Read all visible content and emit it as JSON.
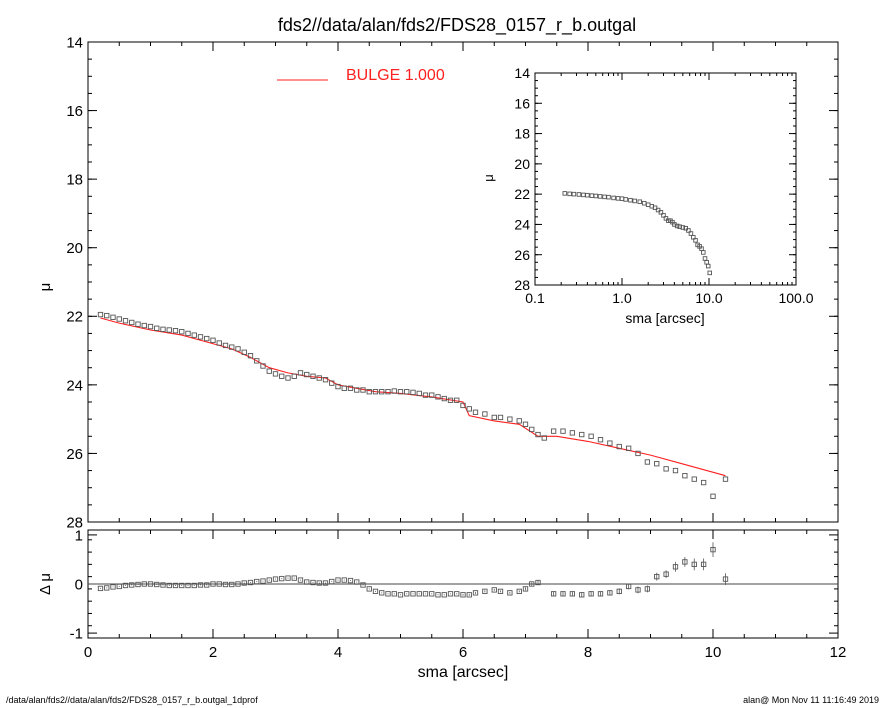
{
  "title": "fds2//data/alan/fds2/FDS28_0157_r_b.outgal",
  "footer": {
    "left": "/data/alan/fds2//data/alan/fds2/FDS28_0157_r_b.outgal_1dprof",
    "right": "alan@  Mon Nov 11 11:16:49 2019"
  },
  "colors": {
    "model": "#ff2020",
    "data": "#555555",
    "axes": "#000000",
    "zero_line": "#444444"
  },
  "chart_data": [
    {
      "id": "main",
      "type": "scatter",
      "xlabel": "",
      "ylabel": "μ",
      "xlim": [
        0,
        12
      ],
      "ylim": [
        28,
        14
      ],
      "x_ticks": [],
      "y_ticks": [
        "14",
        "16",
        "18",
        "20",
        "22",
        "24",
        "26",
        "28"
      ],
      "legend": {
        "label": "BULGE  1.000",
        "placement": "top-center"
      },
      "series": [
        {
          "name": "BULGE  1.000",
          "kind": "line",
          "x": [
            0.2,
            0.5,
            1.0,
            1.5,
            1.9,
            2.3,
            2.6,
            2.9,
            3.2,
            3.5,
            3.8,
            4.0,
            4.3,
            4.6,
            5.0,
            5.5,
            6.0,
            6.1,
            6.5,
            6.9,
            7.2,
            7.5,
            8.0,
            8.5,
            9.0,
            9.5,
            10.2
          ],
          "y": [
            22.05,
            22.2,
            22.4,
            22.55,
            22.75,
            22.95,
            23.2,
            23.5,
            23.65,
            23.75,
            23.8,
            24.0,
            24.1,
            24.2,
            24.25,
            24.35,
            24.5,
            24.9,
            25.05,
            25.15,
            25.5,
            25.5,
            25.65,
            25.85,
            26.05,
            26.3,
            26.65
          ]
        },
        {
          "name": "",
          "kind": "points",
          "x": [
            0.2,
            0.3,
            0.4,
            0.5,
            0.6,
            0.7,
            0.8,
            0.9,
            1.0,
            1.1,
            1.2,
            1.3,
            1.4,
            1.5,
            1.6,
            1.7,
            1.8,
            1.9,
            2.0,
            2.1,
            2.2,
            2.3,
            2.4,
            2.5,
            2.6,
            2.7,
            2.8,
            2.9,
            3.0,
            3.1,
            3.2,
            3.3,
            3.4,
            3.5,
            3.6,
            3.7,
            3.8,
            3.9,
            4.0,
            4.1,
            4.2,
            4.3,
            4.4,
            4.5,
            4.6,
            4.7,
            4.8,
            4.9,
            5.0,
            5.1,
            5.2,
            5.3,
            5.4,
            5.5,
            5.6,
            5.7,
            5.8,
            5.9,
            6.0,
            6.1,
            6.2,
            6.35,
            6.5,
            6.6,
            6.75,
            6.9,
            7.0,
            7.1,
            7.2,
            7.3,
            7.45,
            7.6,
            7.75,
            7.9,
            8.05,
            8.2,
            8.35,
            8.5,
            8.65,
            8.8,
            8.95,
            9.1,
            9.25,
            9.4,
            9.55,
            9.7,
            9.85,
            10.0,
            10.2
          ],
          "y": [
            21.95,
            21.98,
            22.03,
            22.08,
            22.13,
            22.18,
            22.23,
            22.27,
            22.3,
            22.35,
            22.38,
            22.4,
            22.42,
            22.45,
            22.5,
            22.55,
            22.6,
            22.65,
            22.7,
            22.78,
            22.85,
            22.9,
            22.95,
            23.05,
            23.15,
            23.3,
            23.45,
            23.6,
            23.68,
            23.75,
            23.8,
            23.75,
            23.65,
            23.7,
            23.75,
            23.8,
            23.85,
            23.95,
            24.05,
            24.1,
            24.1,
            24.15,
            24.15,
            24.2,
            24.2,
            24.2,
            24.2,
            24.18,
            24.2,
            24.2,
            24.22,
            24.25,
            24.3,
            24.3,
            24.35,
            24.4,
            24.45,
            24.45,
            24.6,
            24.7,
            24.8,
            24.85,
            24.95,
            24.95,
            25.0,
            25.05,
            25.15,
            25.3,
            25.45,
            25.55,
            25.35,
            25.35,
            25.4,
            25.45,
            25.5,
            25.6,
            25.7,
            25.8,
            25.85,
            26.0,
            26.25,
            26.3,
            26.45,
            26.5,
            26.65,
            26.75,
            26.85,
            27.25,
            26.75
          ]
        }
      ]
    },
    {
      "id": "residuals",
      "type": "scatter",
      "xlabel": "sma [arcsec]",
      "ylabel": "Δ μ",
      "xlim": [
        0,
        12
      ],
      "ylim": [
        -1.1,
        1.1
      ],
      "x_ticks": [
        "0",
        "2",
        "4",
        "6",
        "8",
        "10",
        "12"
      ],
      "y_ticks": [
        "1",
        "0",
        "-1"
      ],
      "series": [
        {
          "name": "",
          "kind": "points",
          "x": [
            0.2,
            0.3,
            0.4,
            0.5,
            0.6,
            0.7,
            0.8,
            0.9,
            1.0,
            1.1,
            1.2,
            1.3,
            1.4,
            1.5,
            1.6,
            1.7,
            1.8,
            1.9,
            2.0,
            2.1,
            2.2,
            2.3,
            2.4,
            2.5,
            2.6,
            2.7,
            2.8,
            2.9,
            3.0,
            3.1,
            3.2,
            3.3,
            3.4,
            3.5,
            3.6,
            3.7,
            3.8,
            3.9,
            4.0,
            4.1,
            4.2,
            4.3,
            4.4,
            4.5,
            4.6,
            4.7,
            4.8,
            4.9,
            5.0,
            5.1,
            5.2,
            5.3,
            5.4,
            5.5,
            5.6,
            5.7,
            5.8,
            5.9,
            6.0,
            6.1,
            6.2,
            6.35,
            6.5,
            6.6,
            6.75,
            6.9,
            7.0,
            7.1,
            7.2,
            7.45,
            7.6,
            7.75,
            7.9,
            8.05,
            8.2,
            8.35,
            8.5,
            8.65,
            8.8,
            8.95,
            9.1,
            9.25,
            9.4,
            9.55,
            9.7,
            9.85,
            10.0,
            10.2
          ],
          "y": [
            -0.09,
            -0.08,
            -0.06,
            -0.05,
            -0.03,
            -0.02,
            -0.01,
            0.0,
            0.0,
            -0.01,
            -0.02,
            -0.03,
            -0.03,
            -0.03,
            -0.03,
            -0.03,
            -0.02,
            -0.02,
            0.0,
            0.0,
            -0.01,
            -0.01,
            0.0,
            0.02,
            0.03,
            0.05,
            0.06,
            0.08,
            0.1,
            0.11,
            0.12,
            0.12,
            0.08,
            0.04,
            0.03,
            0.02,
            0.02,
            0.05,
            0.08,
            0.08,
            0.07,
            0.04,
            -0.02,
            -0.1,
            -0.15,
            -0.18,
            -0.2,
            -0.2,
            -0.22,
            -0.2,
            -0.2,
            -0.2,
            -0.2,
            -0.2,
            -0.22,
            -0.22,
            -0.2,
            -0.2,
            -0.22,
            -0.22,
            -0.18,
            -0.15,
            -0.12,
            -0.15,
            -0.18,
            -0.15,
            -0.1,
            0.0,
            0.03,
            -0.2,
            -0.2,
            -0.2,
            -0.22,
            -0.2,
            -0.2,
            -0.18,
            -0.15,
            -0.05,
            -0.12,
            -0.1,
            0.15,
            0.2,
            0.35,
            0.45,
            0.4,
            0.4,
            0.7,
            0.1
          ],
          "errors": [
            0.01,
            0.01,
            0.01,
            0.01,
            0.01,
            0.01,
            0.01,
            0.01,
            0.01,
            0.01,
            0.01,
            0.01,
            0.01,
            0.01,
            0.01,
            0.01,
            0.01,
            0.01,
            0.01,
            0.01,
            0.01,
            0.01,
            0.01,
            0.01,
            0.01,
            0.01,
            0.01,
            0.01,
            0.01,
            0.01,
            0.01,
            0.01,
            0.01,
            0.01,
            0.01,
            0.01,
            0.01,
            0.01,
            0.01,
            0.01,
            0.01,
            0.01,
            0.01,
            0.01,
            0.01,
            0.01,
            0.01,
            0.01,
            0.01,
            0.01,
            0.01,
            0.01,
            0.01,
            0.01,
            0.01,
            0.01,
            0.01,
            0.01,
            0.02,
            0.02,
            0.02,
            0.02,
            0.02,
            0.02,
            0.02,
            0.02,
            0.03,
            0.03,
            0.05,
            0.04,
            0.04,
            0.04,
            0.05,
            0.05,
            0.05,
            0.05,
            0.06,
            0.06,
            0.07,
            0.07,
            0.08,
            0.08,
            0.1,
            0.1,
            0.12,
            0.12,
            0.15,
            0.12
          ]
        }
      ]
    },
    {
      "id": "inset",
      "type": "scatter",
      "xlabel": "sma [arcsec]",
      "ylabel": "μ",
      "xscale": "log",
      "xlim": [
        0.1,
        100
      ],
      "ylim": [
        28,
        14
      ],
      "x_ticks": [
        "0.1",
        "1.0",
        "10.0",
        "100.0"
      ],
      "y_ticks": [
        "14",
        "16",
        "18",
        "20",
        "22",
        "24",
        "26",
        "28"
      ],
      "series": [
        {
          "name": "",
          "kind": "points",
          "x": [
            0.22,
            0.25,
            0.28,
            0.32,
            0.36,
            0.4,
            0.45,
            0.5,
            0.56,
            0.63,
            0.7,
            0.8,
            0.9,
            1.0,
            1.1,
            1.25,
            1.4,
            1.6,
            1.8,
            2.0,
            2.2,
            2.4,
            2.6,
            2.8,
            3.0,
            3.2,
            3.4,
            3.6,
            3.8,
            4.0,
            4.3,
            4.6,
            5.0,
            5.4,
            5.8,
            6.2,
            6.6,
            7.0,
            7.4,
            7.8,
            8.2,
            8.6,
            9.0,
            9.4,
            9.8,
            10.2
          ],
          "y": [
            21.95,
            21.98,
            22.0,
            22.02,
            22.05,
            22.07,
            22.1,
            22.12,
            22.15,
            22.18,
            22.2,
            22.25,
            22.28,
            22.3,
            22.35,
            22.4,
            22.45,
            22.5,
            22.6,
            22.7,
            22.8,
            22.9,
            23.05,
            23.2,
            23.4,
            23.6,
            23.75,
            23.75,
            23.85,
            24.0,
            24.1,
            24.15,
            24.2,
            24.25,
            24.4,
            24.6,
            24.85,
            25.05,
            25.35,
            25.45,
            25.6,
            25.85,
            26.25,
            26.5,
            26.75,
            27.2
          ]
        }
      ]
    }
  ]
}
